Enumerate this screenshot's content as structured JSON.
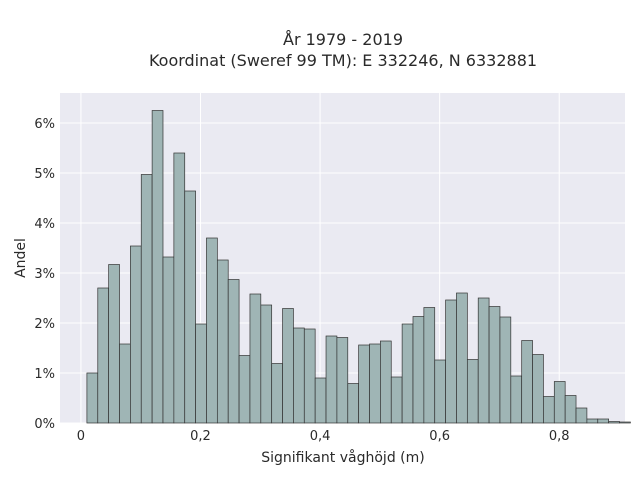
{
  "chart_data": {
    "type": "bar",
    "title_lines": [
      "År 1979 - 2019",
      "Koordinat (Sweref 99 TM): E 332246, N 6332881"
    ],
    "xlabel": "Signifikant våghöjd (m)",
    "ylabel": "Andel",
    "x_ticks": [
      {
        "value": 0,
        "label": "0"
      },
      {
        "value": 0.2,
        "label": "0,2"
      },
      {
        "value": 0.4,
        "label": "0,4"
      },
      {
        "value": 0.6,
        "label": "0,6"
      },
      {
        "value": 0.8,
        "label": "0,8"
      }
    ],
    "y_ticks": [
      {
        "value": 0,
        "label": "0%"
      },
      {
        "value": 1,
        "label": "1%"
      },
      {
        "value": 2,
        "label": "2%"
      },
      {
        "value": 3,
        "label": "3%"
      },
      {
        "value": 4,
        "label": "4%"
      },
      {
        "value": 5,
        "label": "5%"
      },
      {
        "value": 6,
        "label": "6%"
      }
    ],
    "xlim": [
      -0.035,
      0.91
    ],
    "ylim": [
      0,
      6.6
    ],
    "bin_width": 0.01818,
    "bin_start": 0.01,
    "values": [
      1.0,
      2.7,
      3.17,
      1.58,
      3.54,
      4.97,
      6.25,
      3.32,
      5.4,
      4.64,
      1.98,
      3.7,
      3.26,
      2.87,
      1.35,
      2.58,
      2.36,
      1.19,
      2.29,
      1.9,
      1.88,
      0.9,
      1.74,
      1.71,
      0.79,
      1.56,
      1.58,
      1.64,
      0.92,
      1.98,
      2.13,
      2.31,
      1.26,
      2.46,
      2.6,
      1.27,
      2.5,
      2.33,
      2.12,
      0.94,
      1.65,
      1.37,
      0.53,
      0.83,
      0.55,
      0.3,
      0.08,
      0.08,
      0.03,
      0.02
    ],
    "grid": true,
    "colors": {
      "bar": "#9fb5b5",
      "plot_background": "#eaeaf2",
      "grid": "#ffffff"
    }
  }
}
